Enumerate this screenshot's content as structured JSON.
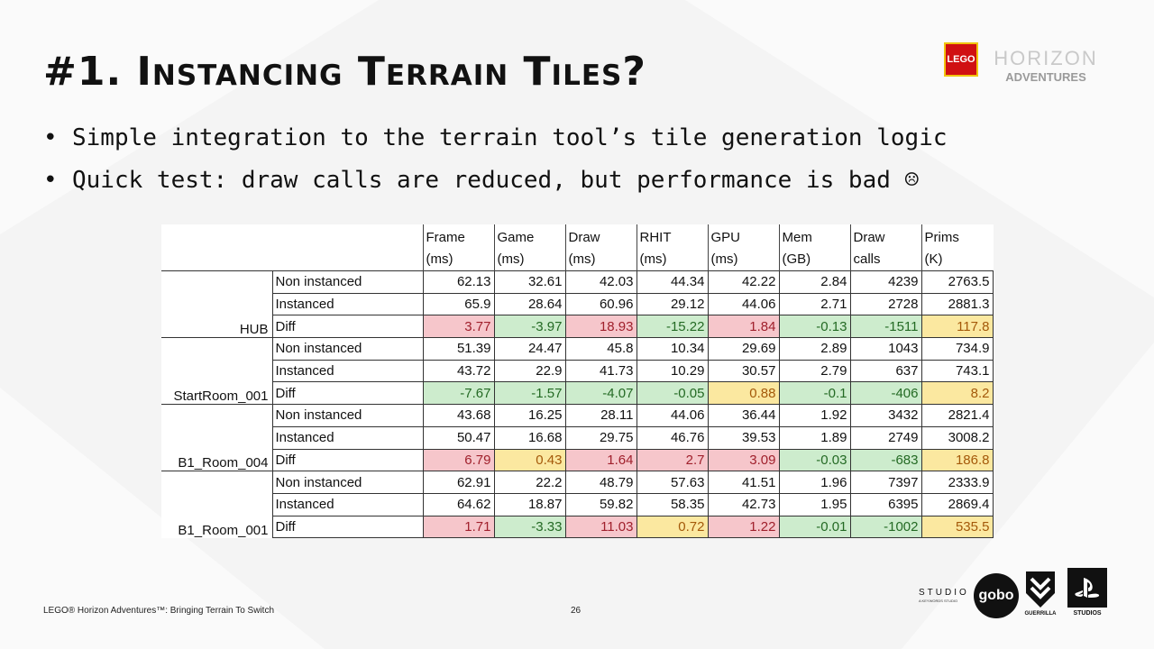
{
  "slide": {
    "title": "#1. Instancing Terrain Tiles?",
    "bullets": [
      "Simple integration to the terrain tool’s tile generation logic",
      "Quick test: draw calls are reduced, but performance is bad ☹"
    ],
    "footer": "LEGO® Horizon Adventures™: Bringing Terrain To Switch",
    "page_number": "26"
  },
  "branding": {
    "lego": "LEGO",
    "horizon_line1": "HORIZON",
    "horizon_line2": "ADVENTURES",
    "studio_word": "STUDIO",
    "studio_sub": "A KEYWORDS STUDIO",
    "gobo": "gobo",
    "guerrilla": "GUERRILLA",
    "playstation": "STUDIOS"
  },
  "table": {
    "headers": [
      {
        "line1": "Frame",
        "line2": "(ms)"
      },
      {
        "line1": "Game",
        "line2": "(ms)"
      },
      {
        "line1": "Draw",
        "line2": "(ms)"
      },
      {
        "line1": "RHIT",
        "line2": "(ms)"
      },
      {
        "line1": "GPU",
        "line2": "(ms)"
      },
      {
        "line1": "Mem",
        "line2": "(GB)"
      },
      {
        "line1": "Draw",
        "line2": "calls"
      },
      {
        "line1": "Prims",
        "line2": "(K)"
      }
    ],
    "groups": [
      {
        "name": "HUB",
        "rows": [
          {
            "label": "Non instanced",
            "values": [
              "62.13",
              "32.61",
              "42.03",
              "44.34",
              "42.22",
              "2.84",
              "4239",
              "2763.5"
            ],
            "status": [
              "",
              "",
              "",
              "",
              "",
              "",
              "",
              ""
            ]
          },
          {
            "label": "Instanced",
            "values": [
              "65.9",
              "28.64",
              "60.96",
              "29.12",
              "44.06",
              "2.71",
              "2728",
              "2881.3"
            ],
            "status": [
              "",
              "",
              "",
              "",
              "",
              "",
              "",
              ""
            ]
          },
          {
            "label": "Diff",
            "values": [
              "3.77",
              "-3.97",
              "18.93",
              "-15.22",
              "1.84",
              "-0.13",
              "-1511",
              "117.8"
            ],
            "status": [
              "pos",
              "neg",
              "pos",
              "neg",
              "pos",
              "neg",
              "neg",
              "warn"
            ]
          }
        ]
      },
      {
        "name": "StartRoom_001",
        "rows": [
          {
            "label": "Non instanced",
            "values": [
              "51.39",
              "24.47",
              "45.8",
              "10.34",
              "29.69",
              "2.89",
              "1043",
              "734.9"
            ],
            "status": [
              "",
              "",
              "",
              "",
              "",
              "",
              "",
              ""
            ]
          },
          {
            "label": "Instanced",
            "values": [
              "43.72",
              "22.9",
              "41.73",
              "10.29",
              "30.57",
              "2.79",
              "637",
              "743.1"
            ],
            "status": [
              "",
              "",
              "",
              "",
              "",
              "",
              "",
              ""
            ]
          },
          {
            "label": "Diff",
            "values": [
              "-7.67",
              "-1.57",
              "-4.07",
              "-0.05",
              "0.88",
              "-0.1",
              "-406",
              "8.2"
            ],
            "status": [
              "neg",
              "neg",
              "neg",
              "neg",
              "warn",
              "neg",
              "neg",
              "warn"
            ]
          }
        ]
      },
      {
        "name": "B1_Room_004",
        "rows": [
          {
            "label": "Non instanced",
            "values": [
              "43.68",
              "16.25",
              "28.11",
              "44.06",
              "36.44",
              "1.92",
              "3432",
              "2821.4"
            ],
            "status": [
              "",
              "",
              "",
              "",
              "",
              "",
              "",
              ""
            ]
          },
          {
            "label": "Instanced",
            "values": [
              "50.47",
              "16.68",
              "29.75",
              "46.76",
              "39.53",
              "1.89",
              "2749",
              "3008.2"
            ],
            "status": [
              "",
              "",
              "",
              "",
              "",
              "",
              "",
              ""
            ]
          },
          {
            "label": "Diff",
            "values": [
              "6.79",
              "0.43",
              "1.64",
              "2.7",
              "3.09",
              "-0.03",
              "-683",
              "186.8"
            ],
            "status": [
              "pos",
              "warn",
              "pos",
              "pos",
              "pos",
              "neg",
              "neg",
              "warn"
            ]
          }
        ]
      },
      {
        "name": "B1_Room_001",
        "rows": [
          {
            "label": "Non instanced",
            "values": [
              "62.91",
              "22.2",
              "48.79",
              "57.63",
              "41.51",
              "1.96",
              "7397",
              "2333.9"
            ],
            "status": [
              "",
              "",
              "",
              "",
              "",
              "",
              "",
              ""
            ]
          },
          {
            "label": "Instanced",
            "values": [
              "64.62",
              "18.87",
              "59.82",
              "58.35",
              "42.73",
              "1.95",
              "6395",
              "2869.4"
            ],
            "status": [
              "",
              "",
              "",
              "",
              "",
              "",
              "",
              ""
            ]
          },
          {
            "label": "Diff",
            "values": [
              "1.71",
              "-3.33",
              "11.03",
              "0.72",
              "1.22",
              "-0.01",
              "-1002",
              "535.5"
            ],
            "status": [
              "pos",
              "neg",
              "pos",
              "warn",
              "pos",
              "neg",
              "neg",
              "warn"
            ]
          }
        ]
      }
    ]
  }
}
